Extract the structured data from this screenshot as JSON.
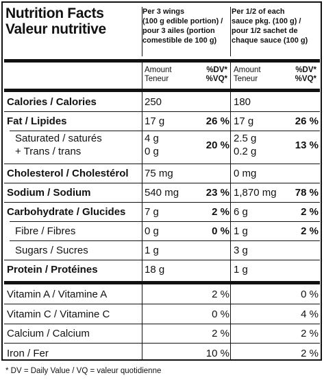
{
  "title_en": "Nutrition Facts",
  "title_fr": "Valeur nutritive",
  "col1_header": [
    "Per 3 wings",
    "(100 g edible portion) /",
    "pour 3 ailes (portion",
    "comestible de 100 g)"
  ],
  "col2_header": [
    "Per 1/2 of each",
    "sauce pkg. (100 g) /",
    "pour 1/2 sachet de",
    "chaque sauce (100 g)"
  ],
  "amount_label": [
    "Amount",
    "Teneur"
  ],
  "dv_label": [
    "%DV*",
    "%VQ*"
  ],
  "rows": [
    {
      "name": "Calories / Calories",
      "a1": "250",
      "d1": "",
      "a2": "180",
      "d2": ""
    },
    {
      "name": "Fat / Lipides",
      "a1": "17 g",
      "d1": "26 %",
      "a2": "17 g",
      "d2": "26 %"
    },
    {
      "name": "Saturated / saturés",
      "name2": "+ Trans / trans",
      "a1": "4 g",
      "a1b": "0 g",
      "d1": "20 %",
      "a2": "2.5 g",
      "a2b": "0.2 g",
      "d2": "13 %"
    },
    {
      "name": "Cholesterol / Cholestérol",
      "a1": "75 mg",
      "d1": "",
      "a2": "0 mg",
      "d2": ""
    },
    {
      "name": "Sodium / Sodium",
      "a1": "540 mg",
      "d1": "23 %",
      "a2": "1,870 mg",
      "d2": "78 %"
    },
    {
      "name": "Carbohydrate / Glucides",
      "a1": "7 g",
      "d1": "2 %",
      "a2": "6 g",
      "d2": "2 %"
    },
    {
      "name": "Fibre / Fibres",
      "a1": "0 g",
      "d1": "0 %",
      "a2": "1 g",
      "d2": "2 %"
    },
    {
      "name": "Sugars / Sucres",
      "a1": "1 g",
      "d1": "",
      "a2": "3 g",
      "d2": ""
    },
    {
      "name": "Protein / Protéines",
      "a1": "18 g",
      "d1": "",
      "a2": "1 g",
      "d2": ""
    }
  ],
  "vitamins": [
    {
      "name": "Vitamin A / Vitamine A",
      "d1": "2 %",
      "d2": "0 %"
    },
    {
      "name": "Vitamin C / Vitamine C",
      "d1": "0 %",
      "d2": "4 %"
    },
    {
      "name": "Calcium / Calcium",
      "d1": "2 %",
      "d2": "2 %"
    },
    {
      "name": "Iron / Fer",
      "d1": "10 %",
      "d2": "2 %"
    }
  ],
  "footnote": "* DV = Daily Value / VQ = valeur quotidienne"
}
